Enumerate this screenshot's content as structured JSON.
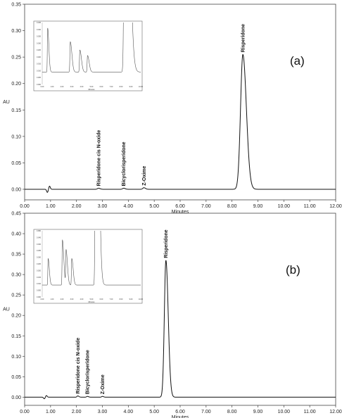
{
  "chart_data": [
    {
      "type": "line",
      "panel_label": "(a)",
      "xlabel": "Minutes",
      "ylabel": "AU",
      "xlim": [
        0,
        12
      ],
      "ylim": [
        -0.02,
        0.35
      ],
      "xticks": [
        "0.00",
        "1.00",
        "2.00",
        "3.00",
        "4.00",
        "5.00",
        "6.00",
        "7.00",
        "8.00",
        "9.00",
        "10.00",
        "11.00",
        "12.00"
      ],
      "yticks": [
        "0.00",
        "0.05",
        "0.10",
        "0.15",
        "0.20",
        "0.25",
        "0.30",
        "0.35"
      ],
      "grid": false,
      "peaks": [
        {
          "name": "Risperidone cis N-oxide",
          "rt": 2.85,
          "height": 0.002,
          "width": 0.04
        },
        {
          "name": "Bicyclorisperidone",
          "rt": 3.82,
          "height": 0.002,
          "width": 0.04
        },
        {
          "name": "Z-Oxime",
          "rt": 4.6,
          "height": 0.003,
          "width": 0.04
        },
        {
          "name": "Risperidone",
          "rt": 8.42,
          "height": 0.255,
          "width": 0.09
        }
      ],
      "disturbance": {
        "rt": 0.92,
        "amplitude": 0.006
      },
      "inset": {
        "description_free": true,
        "yticks": [
          "0.000",
          "0.005",
          "0.010",
          "0.015",
          "0.020",
          "0.025",
          "0.030",
          "0.035",
          "0.040",
          "0.045"
        ],
        "xticks": [
          "0.00",
          "1.00",
          "2.00",
          "3.00",
          "4.00",
          "5.00",
          "6.00",
          "7.00",
          "8.00",
          "9.00",
          "10.00"
        ],
        "xlabel": "Minutes",
        "peaks": [
          {
            "rt": 0.55,
            "height": 0.032,
            "width": 0.03
          },
          {
            "rt": 2.85,
            "height": 0.022,
            "width": 0.04
          },
          {
            "rt": 3.82,
            "height": 0.016,
            "width": 0.04
          },
          {
            "rt": 4.6,
            "height": 0.012,
            "width": 0.04
          },
          {
            "rt": 8.42,
            "height": 0.3,
            "width": 0.09
          }
        ]
      }
    },
    {
      "type": "line",
      "panel_label": "(b)",
      "xlabel": "Minutes",
      "ylabel": "AU",
      "xlim": [
        0,
        12
      ],
      "ylim": [
        -0.02,
        0.45
      ],
      "xticks": [
        "0.00",
        "1.00",
        "2.00",
        "3.00",
        "4.00",
        "5.00",
        "6.00",
        "7.00",
        "8.00",
        "9.00",
        "10.00",
        "11.00",
        "12.00"
      ],
      "yticks": [
        "0.00",
        "0.05",
        "0.10",
        "0.15",
        "0.20",
        "0.25",
        "0.30",
        "0.35",
        "0.40",
        "0.45"
      ],
      "grid": false,
      "peaks": [
        {
          "name": "Risperidone cis N-oxide",
          "rt": 2.05,
          "height": 0.003,
          "width": 0.03
        },
        {
          "name": "Bicyclorisperidone",
          "rt": 2.42,
          "height": 0.002,
          "width": 0.03
        },
        {
          "name": "Z-Oxime",
          "rt": 3.0,
          "height": 0.002,
          "width": 0.03
        },
        {
          "name": "Risperidone",
          "rt": 5.45,
          "height": 0.335,
          "width": 0.06
        }
      ],
      "disturbance": {
        "rt": 0.8,
        "amplitude": 0.004
      },
      "inset": {
        "yticks": [
          "0.000",
          "0.005",
          "0.010",
          "0.015",
          "0.020",
          "0.025",
          "0.030",
          "0.035",
          "0.040",
          "0.045",
          "0.050"
        ],
        "xticks": [
          "0.00",
          "1.00",
          "2.00",
          "3.00",
          "4.00",
          "5.00",
          "6.00",
          "7.00",
          "8.00",
          "9.00",
          "10.00"
        ],
        "xlabel": "Minutes",
        "peaks": [
          {
            "rt": 0.6,
            "height": 0.02,
            "width": 0.03
          },
          {
            "rt": 2.05,
            "height": 0.034,
            "width": 0.035
          },
          {
            "rt": 2.42,
            "height": 0.026,
            "width": 0.035
          },
          {
            "rt": 3.0,
            "height": 0.02,
            "width": 0.035
          },
          {
            "rt": 5.45,
            "height": 0.3,
            "width": 0.06
          }
        ]
      }
    }
  ]
}
